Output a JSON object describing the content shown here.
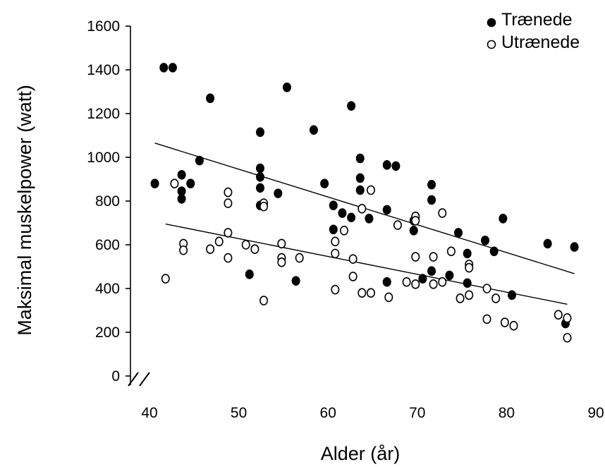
{
  "chart_data": {
    "type": "scatter",
    "xlabel": "Alder (år)",
    "ylabel": "Maksimal muskelpower (watt)",
    "xlim": [
      40,
      90
    ],
    "ylim": [
      0,
      1600
    ],
    "x_ticks": [
      "40",
      "50",
      "60",
      "70",
      "80",
      "90"
    ],
    "y_ticks": [
      "0",
      "200",
      "400",
      "600",
      "800",
      "1000",
      "1200",
      "1400",
      "1600"
    ],
    "legend_position": "top-right",
    "axis_break": true,
    "series": [
      {
        "name": "Trænede",
        "marker": "filled-circle",
        "color": "#000000",
        "points": [
          [
            40.6,
            880
          ],
          [
            41.6,
            1410
          ],
          [
            42.6,
            1410
          ],
          [
            43.6,
            920
          ],
          [
            43.6,
            845
          ],
          [
            43.6,
            810
          ],
          [
            44.6,
            880
          ],
          [
            45.6,
            985
          ],
          [
            46.8,
            1270
          ],
          [
            51.2,
            465
          ],
          [
            52.4,
            1115
          ],
          [
            52.4,
            950
          ],
          [
            52.4,
            910
          ],
          [
            52.4,
            860
          ],
          [
            52.4,
            780
          ],
          [
            54.4,
            835
          ],
          [
            55.4,
            1320
          ],
          [
            56.4,
            435
          ],
          [
            58.4,
            1125
          ],
          [
            59.6,
            880
          ],
          [
            60.6,
            780
          ],
          [
            60.6,
            670
          ],
          [
            61.6,
            745
          ],
          [
            62.6,
            1235
          ],
          [
            62.6,
            725
          ],
          [
            63.6,
            995
          ],
          [
            63.6,
            905
          ],
          [
            63.6,
            850
          ],
          [
            64.6,
            720
          ],
          [
            66.6,
            965
          ],
          [
            66.6,
            760
          ],
          [
            66.6,
            430
          ],
          [
            67.6,
            960
          ],
          [
            69.6,
            710
          ],
          [
            69.6,
            665
          ],
          [
            70.6,
            445
          ],
          [
            71.6,
            875
          ],
          [
            71.6,
            805
          ],
          [
            71.6,
            480
          ],
          [
            73.6,
            460
          ],
          [
            74.6,
            655
          ],
          [
            75.6,
            560
          ],
          [
            75.6,
            425
          ],
          [
            77.6,
            620
          ],
          [
            78.6,
            570
          ],
          [
            79.6,
            720
          ],
          [
            80.6,
            370
          ],
          [
            84.6,
            605
          ],
          [
            86.6,
            240
          ],
          [
            87.6,
            590
          ]
        ]
      },
      {
        "name": "Utrænede",
        "marker": "open-circle",
        "color": "#000000",
        "points": [
          [
            41.8,
            445
          ],
          [
            42.8,
            880
          ],
          [
            43.8,
            605
          ],
          [
            43.8,
            575
          ],
          [
            46.8,
            580
          ],
          [
            47.8,
            615
          ],
          [
            48.8,
            840
          ],
          [
            48.8,
            790
          ],
          [
            48.8,
            655
          ],
          [
            48.8,
            540
          ],
          [
            50.8,
            600
          ],
          [
            51.8,
            580
          ],
          [
            52.8,
            790
          ],
          [
            52.8,
            775
          ],
          [
            52.8,
            345
          ],
          [
            54.8,
            605
          ],
          [
            54.8,
            540
          ],
          [
            54.8,
            520
          ],
          [
            56.8,
            540
          ],
          [
            60.8,
            615
          ],
          [
            60.8,
            560
          ],
          [
            60.8,
            395
          ],
          [
            61.8,
            665
          ],
          [
            62.8,
            535
          ],
          [
            62.8,
            455
          ],
          [
            63.8,
            765
          ],
          [
            63.8,
            380
          ],
          [
            64.8,
            850
          ],
          [
            64.8,
            380
          ],
          [
            66.8,
            360
          ],
          [
            67.8,
            690
          ],
          [
            68.8,
            430
          ],
          [
            69.8,
            730
          ],
          [
            69.8,
            710
          ],
          [
            69.8,
            545
          ],
          [
            69.8,
            420
          ],
          [
            71.8,
            545
          ],
          [
            71.8,
            420
          ],
          [
            72.8,
            745
          ],
          [
            72.8,
            430
          ],
          [
            73.8,
            570
          ],
          [
            74.8,
            355
          ],
          [
            75.8,
            510
          ],
          [
            75.8,
            495
          ],
          [
            75.8,
            370
          ],
          [
            77.8,
            400
          ],
          [
            77.8,
            260
          ],
          [
            78.8,
            355
          ],
          [
            79.8,
            245
          ],
          [
            80.8,
            230
          ],
          [
            85.8,
            280
          ],
          [
            86.8,
            265
          ],
          [
            86.8,
            175
          ]
        ]
      }
    ],
    "trend_lines": [
      {
        "series": "Trænede",
        "from": [
          40.6,
          1065
        ],
        "to": [
          87.6,
          468
        ]
      },
      {
        "series": "Utrænede",
        "from": [
          41.8,
          695
        ],
        "to": [
          86.8,
          328
        ]
      }
    ]
  }
}
